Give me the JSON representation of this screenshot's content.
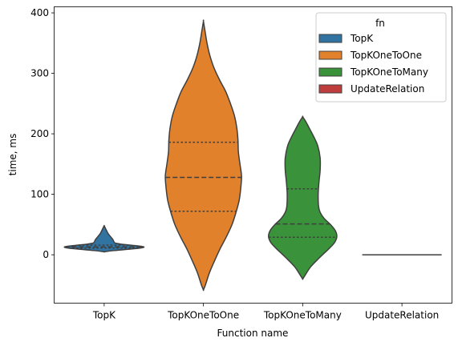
{
  "chart_data": {
    "type": "violin",
    "xlabel": "Function name",
    "ylabel": "time, ms",
    "ylim": [
      -80,
      410
    ],
    "yticks": [
      0,
      100,
      200,
      300,
      400
    ],
    "categories": [
      "TopK",
      "TopKOneToOne",
      "TopKOneToMany",
      "UpdateRelation"
    ],
    "legend": {
      "title": "fn",
      "position": "top-right",
      "entries": [
        "TopK",
        "TopKOneToOne",
        "TopKOneToMany",
        "UpdateRelation"
      ]
    },
    "grid": false,
    "inner": "quartile",
    "series": [
      {
        "name": "TopK",
        "color": "#3274a1",
        "quartiles": [
          11,
          13,
          16
        ],
        "profile": [
          [
            5,
            0.0
          ],
          [
            7,
            0.25
          ],
          [
            9,
            0.6
          ],
          [
            11,
            0.9
          ],
          [
            13,
            1.0
          ],
          [
            15,
            0.8
          ],
          [
            17,
            0.5
          ],
          [
            19,
            0.3
          ],
          [
            21,
            0.25
          ],
          [
            25,
            0.22
          ],
          [
            30,
            0.16
          ],
          [
            35,
            0.1
          ],
          [
            40,
            0.06
          ],
          [
            44,
            0.03
          ],
          [
            48,
            0.0
          ]
        ]
      },
      {
        "name": "TopKOneToOne",
        "color": "#e1812c",
        "quartiles": [
          72,
          128,
          186
        ],
        "profile": [
          [
            -58,
            0.0
          ],
          [
            -50,
            0.05
          ],
          [
            -30,
            0.15
          ],
          [
            -10,
            0.28
          ],
          [
            10,
            0.42
          ],
          [
            30,
            0.58
          ],
          [
            50,
            0.72
          ],
          [
            70,
            0.82
          ],
          [
            90,
            0.9
          ],
          [
            110,
            0.94
          ],
          [
            130,
            0.96
          ],
          [
            150,
            0.92
          ],
          [
            170,
            0.88
          ],
          [
            190,
            0.87
          ],
          [
            210,
            0.84
          ],
          [
            230,
            0.78
          ],
          [
            250,
            0.68
          ],
          [
            270,
            0.56
          ],
          [
            290,
            0.4
          ],
          [
            310,
            0.26
          ],
          [
            330,
            0.16
          ],
          [
            350,
            0.09
          ],
          [
            370,
            0.04
          ],
          [
            386,
            0.0
          ]
        ]
      },
      {
        "name": "TopKOneToMany",
        "color": "#3a923a",
        "quartiles": [
          29,
          51,
          109
        ],
        "profile": [
          [
            -40,
            0.0
          ],
          [
            -35,
            0.05
          ],
          [
            -20,
            0.2
          ],
          [
            -5,
            0.42
          ],
          [
            10,
            0.66
          ],
          [
            20,
            0.8
          ],
          [
            30,
            0.86
          ],
          [
            40,
            0.82
          ],
          [
            50,
            0.7
          ],
          [
            60,
            0.54
          ],
          [
            70,
            0.44
          ],
          [
            80,
            0.4
          ],
          [
            100,
            0.39
          ],
          [
            120,
            0.41
          ],
          [
            140,
            0.44
          ],
          [
            160,
            0.44
          ],
          [
            180,
            0.38
          ],
          [
            195,
            0.28
          ],
          [
            210,
            0.16
          ],
          [
            220,
            0.08
          ],
          [
            228,
            0.0
          ]
        ]
      },
      {
        "name": "UpdateRelation",
        "color": "#c03d3e",
        "quartiles": [
          0,
          0,
          0
        ],
        "flat": true
      }
    ]
  }
}
